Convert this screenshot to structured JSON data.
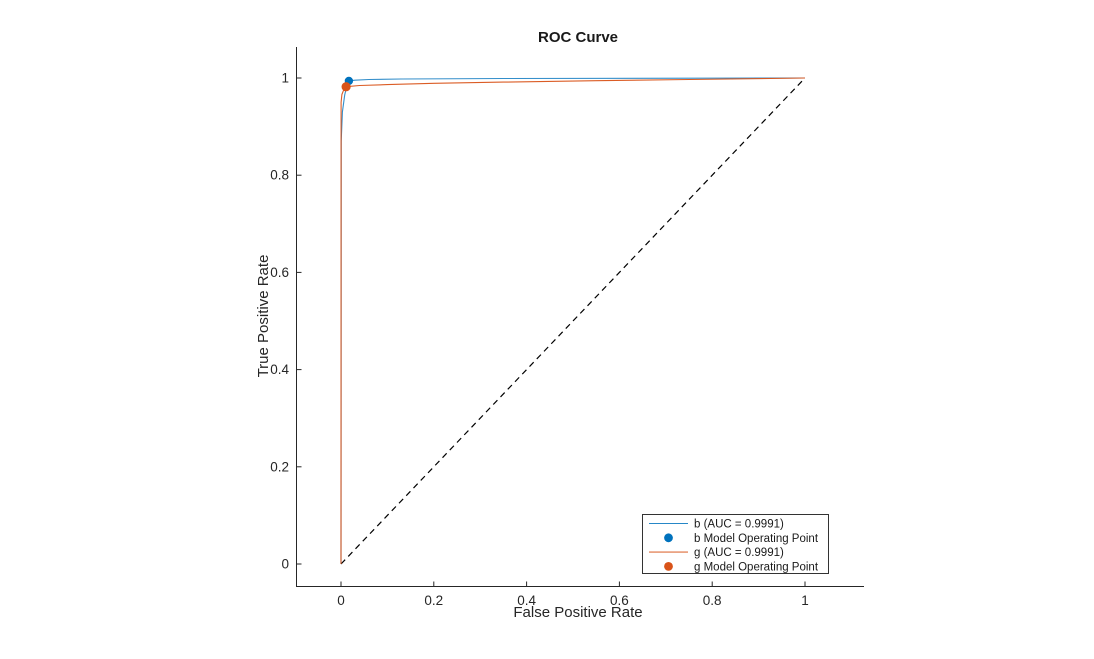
{
  "figure": {
    "background": "#ffffff"
  },
  "chart_data": {
    "type": "line",
    "title": "ROC Curve",
    "xlabel": "False Positive Rate",
    "ylabel": "True Positive Rate",
    "xticks": [
      0,
      0.2,
      0.4,
      0.6,
      0.8,
      1
    ],
    "yticks": [
      0,
      0.2,
      0.4,
      0.6,
      0.8,
      1
    ],
    "xtick_labels": [
      "0",
      "0.2",
      "0.4",
      "0.6",
      "0.8",
      "1"
    ],
    "ytick_labels": [
      "0",
      "0.2",
      "0.4",
      "0.6",
      "0.8",
      "1"
    ],
    "xlim": [
      -0.097,
      1.127
    ],
    "ylim": [
      -0.046,
      1.064
    ],
    "grid": false,
    "axis_color": "#262626",
    "series": [
      {
        "name": "b (AUC = 0.9991)",
        "auc": 0.9991,
        "color": "#0072BD",
        "type": "line",
        "points": [
          [
            0,
            0
          ],
          [
            0.0005,
            0.87
          ],
          [
            0.003,
            0.93
          ],
          [
            0.008,
            0.965
          ],
          [
            0.013,
            0.985
          ],
          [
            0.017,
            0.994
          ],
          [
            0.03,
            0.9955
          ],
          [
            0.06,
            0.997
          ],
          [
            0.13,
            0.998
          ],
          [
            0.35,
            0.999
          ],
          [
            1,
            1
          ]
        ]
      },
      {
        "name": "g (AUC = 0.9991)",
        "auc": 0.9991,
        "color": "#D95319",
        "type": "line",
        "points": [
          [
            0,
            0
          ],
          [
            0.0003,
            0.95
          ],
          [
            0.002,
            0.966
          ],
          [
            0.006,
            0.976
          ],
          [
            0.011,
            0.982
          ],
          [
            0.04,
            0.9845
          ],
          [
            0.1,
            0.9865
          ],
          [
            0.2,
            0.989
          ],
          [
            0.35,
            0.9915
          ],
          [
            0.55,
            0.9945
          ],
          [
            0.75,
            0.997
          ],
          [
            1,
            1
          ]
        ]
      }
    ],
    "operating_points": [
      {
        "name": "b Model Operating Point",
        "color": "#0072BD",
        "x": 0.017,
        "y": 0.994,
        "radius": 4.2
      },
      {
        "name": "g Model Operating Point",
        "color": "#D95319",
        "x": 0.011,
        "y": 0.982,
        "radius": 4.6
      }
    ],
    "reference_line": {
      "from": [
        0,
        0
      ],
      "to": [
        1,
        1
      ],
      "style": "dashed",
      "color": "#000000"
    },
    "legend": {
      "position": "inside-bottom-right",
      "background": "#ffffff",
      "border_color": "#333333",
      "entries": [
        {
          "label": "b (AUC = 0.9991)",
          "glyph": "line",
          "color": "#0072BD"
        },
        {
          "label": "b Model Operating Point",
          "glyph": "marker",
          "color": "#0072BD"
        },
        {
          "label": "g (AUC = 0.9991)",
          "glyph": "line",
          "color": "#D95319"
        },
        {
          "label": "g Model Operating Point",
          "glyph": "marker",
          "color": "#D95319"
        }
      ]
    }
  }
}
